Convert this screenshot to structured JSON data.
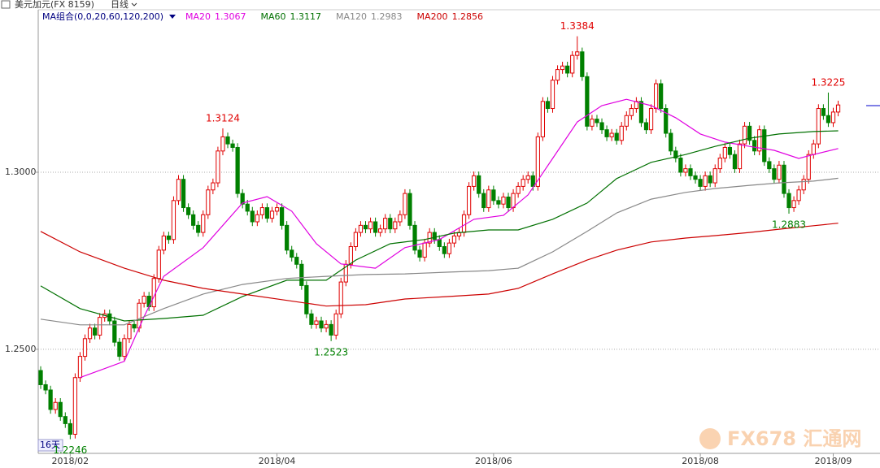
{
  "chart_data": {
    "type": "candlestick",
    "header": "美元加元(FX 8159)",
    "period": "日线",
    "ma_group": "MA组合(0,0,20,60,120,200)",
    "span_label": "16天",
    "watermark": "FX678 汇通网",
    "up_color": "#e00000",
    "down_color": "#008000",
    "grid": true,
    "xlim": [
      -0.5,
      170.5
    ],
    "ylim": [
      1.2206,
      1.3452
    ],
    "yticks": [
      {
        "value": 1.25,
        "label": "1.2500"
      },
      {
        "value": 1.3,
        "label": "1.3000"
      }
    ],
    "xticks": [
      {
        "value": 6,
        "label": "2018/02"
      },
      {
        "value": 48,
        "label": "2018/04"
      },
      {
        "value": 92,
        "label": "2018/06"
      },
      {
        "value": 134,
        "label": "2018/08"
      },
      {
        "value": 161,
        "label": "2018/09"
      }
    ],
    "open": [
      1.244,
      1.24,
      1.2385,
      1.233,
      1.235,
      1.231,
      1.229,
      1.226,
      1.242,
      1.248,
      1.253,
      1.256,
      1.254,
      1.259,
      1.26,
      1.258,
      1.252,
      1.248,
      1.253,
      1.257,
      1.256,
      1.263,
      1.265,
      1.262,
      1.27,
      1.278,
      1.282,
      1.281,
      1.292,
      1.298,
      1.29,
      1.288,
      1.285,
      1.283,
      1.288,
      1.295,
      1.297,
      1.306,
      1.31,
      1.308,
      1.307,
      1.294,
      1.291,
      1.289,
      1.286,
      1.288,
      1.29,
      1.287,
      1.289,
      1.29,
      1.285,
      1.278,
      1.276,
      1.274,
      1.268,
      1.26,
      1.257,
      1.258,
      1.256,
      1.257,
      1.254,
      1.26,
      1.269,
      1.274,
      1.279,
      1.283,
      1.285,
      1.284,
      1.286,
      1.283,
      1.284,
      1.287,
      1.284,
      1.286,
      1.288,
      1.294,
      1.285,
      1.278,
      1.276,
      1.28,
      1.283,
      1.281,
      1.279,
      1.277,
      1.28,
      1.282,
      1.283,
      1.288,
      1.296,
      1.299,
      1.294,
      1.29,
      1.295,
      1.292,
      1.291,
      1.293,
      1.29,
      1.294,
      1.296,
      1.298,
      1.299,
      1.296,
      1.31,
      1.32,
      1.318,
      1.326,
      1.329,
      1.33,
      1.328,
      1.333,
      1.334,
      1.327,
      1.313,
      1.315,
      1.314,
      1.312,
      1.31,
      1.311,
      1.309,
      1.313,
      1.316,
      1.318,
      1.32,
      1.314,
      1.312,
      1.318,
      1.325,
      1.318,
      1.311,
      1.306,
      1.304,
      1.3,
      1.301,
      1.299,
      1.298,
      1.296,
      1.299,
      1.297,
      1.301,
      1.304,
      1.307,
      1.305,
      1.301,
      1.308,
      1.313,
      1.309,
      1.306,
      1.312,
      1.303,
      1.301,
      1.298,
      1.302,
      1.294,
      1.29,
      1.292,
      1.295,
      1.298,
      1.305,
      1.308,
      1.318,
      1.316,
      1.314,
      1.317
    ],
    "high": [
      1.2452,
      1.2412,
      1.2397,
      1.2362,
      1.2362,
      1.2322,
      1.2302,
      1.2432,
      1.2492,
      1.2542,
      1.2572,
      1.2572,
      1.2602,
      1.2612,
      1.2612,
      1.2592,
      1.2532,
      1.2542,
      1.2582,
      1.2582,
      1.2642,
      1.2662,
      1.2662,
      1.2712,
      1.2792,
      1.2832,
      1.2832,
      1.2932,
      1.2992,
      1.2992,
      1.2912,
      1.2892,
      1.2862,
      1.2892,
      1.2962,
      1.2982,
      1.3072,
      1.3124,
      1.3112,
      1.3092,
      1.3082,
      1.2952,
      1.2922,
      1.2902,
      1.2892,
      1.2912,
      1.2912,
      1.2902,
      1.2912,
      1.2912,
      1.2862,
      1.2792,
      1.2772,
      1.2752,
      1.2692,
      1.2612,
      1.2592,
      1.2592,
      1.2582,
      1.2582,
      1.2612,
      1.2702,
      1.2752,
      1.2802,
      1.2842,
      1.2862,
      1.2862,
      1.2872,
      1.2872,
      1.2852,
      1.2882,
      1.2882,
      1.2872,
      1.2892,
      1.2952,
      1.2952,
      1.2862,
      1.2792,
      1.2812,
      1.2842,
      1.2842,
      1.2822,
      1.2802,
      1.2812,
      1.2832,
      1.2842,
      1.2892,
      1.2972,
      1.3002,
      1.3002,
      1.2952,
      1.2962,
      1.2962,
      1.2932,
      1.2942,
      1.2942,
      1.2952,
      1.2972,
      1.2992,
      1.3002,
      1.3002,
      1.3112,
      1.3212,
      1.3212,
      1.3272,
      1.3302,
      1.3312,
      1.3312,
      1.3342,
      1.3384,
      1.3352,
      1.3282,
      1.3162,
      1.3162,
      1.3152,
      1.3132,
      1.3122,
      1.3122,
      1.3142,
      1.3172,
      1.3192,
      1.3212,
      1.3212,
      1.3152,
      1.3192,
      1.3262,
      1.3262,
      1.3192,
      1.3122,
      1.3072,
      1.3052,
      1.3022,
      1.3022,
      1.3002,
      1.2992,
      1.3002,
      1.3002,
      1.3022,
      1.3052,
      1.3082,
      1.3082,
      1.3062,
      1.3092,
      1.3142,
      1.3142,
      1.3102,
      1.3132,
      1.3132,
      1.3042,
      1.3022,
      1.3032,
      1.3032,
      1.2952,
      1.2932,
      1.2962,
      1.2992,
      1.3062,
      1.3092,
      1.3192,
      1.3192,
      1.3225,
      1.3182,
      1.3202
    ],
    "low": [
      1.2388,
      1.2373,
      1.2318,
      1.2318,
      1.2298,
      1.2278,
      1.2246,
      1.2248,
      1.2408,
      1.2468,
      1.2518,
      1.2528,
      1.2528,
      1.2578,
      1.2568,
      1.2508,
      1.2468,
      1.2468,
      1.2518,
      1.2548,
      1.2548,
      1.2618,
      1.2608,
      1.2608,
      1.2688,
      1.2768,
      1.2798,
      1.2798,
      1.2908,
      1.2888,
      1.2868,
      1.2838,
      1.2818,
      1.2818,
      1.2868,
      1.2938,
      1.2958,
      1.3048,
      1.3068,
      1.3058,
      1.2928,
      1.2898,
      1.2878,
      1.2848,
      1.2848,
      1.2868,
      1.2858,
      1.2858,
      1.2878,
      1.2838,
      1.2768,
      1.2748,
      1.2728,
      1.2668,
      1.2588,
      1.2558,
      1.2558,
      1.2548,
      1.2548,
      1.2523,
      1.2528,
      1.2588,
      1.2678,
      1.2728,
      1.2778,
      1.2818,
      1.2828,
      1.2828,
      1.2818,
      1.2818,
      1.2828,
      1.2828,
      1.2828,
      1.2848,
      1.2868,
      1.2838,
      1.2768,
      1.2748,
      1.2748,
      1.2788,
      1.2798,
      1.2778,
      1.2758,
      1.2758,
      1.2788,
      1.2808,
      1.2818,
      1.2868,
      1.2948,
      1.2928,
      1.2888,
      1.2888,
      1.2908,
      1.2898,
      1.2898,
      1.2888,
      1.2888,
      1.2928,
      1.2948,
      1.2968,
      1.2948,
      1.2948,
      1.3088,
      1.3168,
      1.3168,
      1.3248,
      1.3278,
      1.3268,
      1.3268,
      1.3318,
      1.3258,
      1.3118,
      1.3118,
      1.3128,
      1.3108,
      1.3088,
      1.3088,
      1.3078,
      1.3078,
      1.3118,
      1.3148,
      1.3168,
      1.3128,
      1.3108,
      1.3108,
      1.3168,
      1.3168,
      1.3098,
      1.3048,
      1.3028,
      1.2988,
      1.2988,
      1.2978,
      1.2968,
      1.2948,
      1.2948,
      1.2958,
      1.2958,
      1.2998,
      1.3028,
      1.3038,
      1.2998,
      1.2998,
      1.3068,
      1.3078,
      1.3048,
      1.3048,
      1.3018,
      1.2998,
      1.2968,
      1.2968,
      1.2928,
      1.2883,
      1.2888,
      1.2908,
      1.2938,
      1.2968,
      1.3038,
      1.3068,
      1.3148,
      1.3128,
      1.3128,
      1.3158
    ],
    "close": [
      1.24,
      1.2385,
      1.233,
      1.235,
      1.231,
      1.229,
      1.226,
      1.242,
      1.248,
      1.253,
      1.256,
      1.254,
      1.259,
      1.26,
      1.258,
      1.252,
      1.248,
      1.253,
      1.257,
      1.256,
      1.263,
      1.265,
      1.262,
      1.27,
      1.278,
      1.282,
      1.281,
      1.292,
      1.298,
      1.29,
      1.288,
      1.285,
      1.283,
      1.288,
      1.295,
      1.297,
      1.306,
      1.31,
      1.308,
      1.307,
      1.294,
      1.291,
      1.289,
      1.286,
      1.288,
      1.29,
      1.287,
      1.289,
      1.29,
      1.285,
      1.278,
      1.276,
      1.274,
      1.268,
      1.26,
      1.257,
      1.258,
      1.256,
      1.257,
      1.254,
      1.26,
      1.269,
      1.274,
      1.279,
      1.283,
      1.285,
      1.284,
      1.286,
      1.283,
      1.284,
      1.287,
      1.284,
      1.286,
      1.288,
      1.294,
      1.285,
      1.278,
      1.276,
      1.28,
      1.283,
      1.281,
      1.279,
      1.277,
      1.28,
      1.282,
      1.283,
      1.288,
      1.296,
      1.299,
      1.294,
      1.29,
      1.295,
      1.292,
      1.291,
      1.293,
      1.29,
      1.294,
      1.296,
      1.298,
      1.299,
      1.296,
      1.31,
      1.32,
      1.318,
      1.326,
      1.329,
      1.33,
      1.328,
      1.333,
      1.334,
      1.327,
      1.313,
      1.315,
      1.314,
      1.312,
      1.31,
      1.311,
      1.309,
      1.313,
      1.316,
      1.318,
      1.32,
      1.314,
      1.312,
      1.318,
      1.325,
      1.318,
      1.311,
      1.306,
      1.304,
      1.3,
      1.301,
      1.299,
      1.298,
      1.296,
      1.299,
      1.297,
      1.301,
      1.304,
      1.307,
      1.305,
      1.301,
      1.308,
      1.313,
      1.309,
      1.306,
      1.312,
      1.303,
      1.301,
      1.298,
      1.302,
      1.294,
      1.29,
      1.292,
      1.295,
      1.298,
      1.305,
      1.308,
      1.318,
      1.316,
      1.314,
      1.317,
      1.319
    ],
    "annotations": [
      {
        "x": 6,
        "value": 1.2246,
        "color": "#008000"
      },
      {
        "x": 37,
        "value": 1.3124,
        "color": "#e00000"
      },
      {
        "x": 59,
        "value": 1.2523,
        "color": "#008000"
      },
      {
        "x": 109,
        "value": 1.3384,
        "color": "#e00000"
      },
      {
        "x": 152,
        "value": 1.2883,
        "color": "#008000"
      },
      {
        "x": 160,
        "value": 1.3225,
        "color": "#e00000"
      }
    ],
    "series": [
      {
        "name": "MA20",
        "color": "#e000e0",
        "last": 1.3067,
        "x": [
          8,
          17,
          21,
          25,
          33,
          41,
          46,
          51,
          56,
          61,
          68,
          74,
          81,
          88,
          94,
          99,
          104,
          109,
          114,
          119,
          124,
          129,
          134,
          139,
          144,
          149,
          154,
          157,
          162
        ],
        "values": [
          1.242,
          1.2466,
          1.2592,
          1.2706,
          1.2787,
          1.2913,
          1.2931,
          1.289,
          1.2798,
          1.2741,
          1.2729,
          1.2787,
          1.281,
          1.2867,
          1.2878,
          1.2936,
          1.3039,
          1.3142,
          1.3188,
          1.3206,
          1.3188,
          1.3154,
          1.3108,
          1.3085,
          1.3073,
          1.3062,
          1.3039,
          1.305,
          1.3067
        ]
      },
      {
        "name": "MA60",
        "color": "#007000",
        "last": 1.3117,
        "x": [
          0,
          8,
          17,
          25,
          33,
          41,
          50,
          58,
          64,
          71,
          78,
          84,
          91,
          97,
          104,
          111,
          117,
          124,
          131,
          137,
          144,
          150,
          157,
          162
        ],
        "values": [
          1.2679,
          1.2615,
          1.258,
          1.2587,
          1.2596,
          1.2649,
          1.2695,
          1.2695,
          1.2752,
          1.2798,
          1.281,
          1.2828,
          1.2837,
          1.2837,
          1.2867,
          1.2913,
          1.2982,
          1.3028,
          1.305,
          1.3073,
          1.3096,
          1.3108,
          1.3115,
          1.3117
        ]
      },
      {
        "name": "MA120",
        "color": "#888888",
        "last": 1.2983,
        "x": [
          0,
          8,
          17,
          25,
          33,
          41,
          50,
          58,
          66,
          74,
          83,
          91,
          97,
          104,
          111,
          117,
          124,
          131,
          137,
          144,
          150,
          157,
          162
        ],
        "values": [
          1.2585,
          1.2569,
          1.2569,
          1.2615,
          1.2656,
          1.2683,
          1.27,
          1.2706,
          1.2711,
          1.2713,
          1.2718,
          1.2722,
          1.2729,
          1.2775,
          1.2833,
          1.2885,
          1.2924,
          1.2943,
          1.2954,
          1.2963,
          1.297,
          1.2975,
          1.2983
        ]
      },
      {
        "name": "MA200",
        "color": "#cc0000",
        "last": 1.2856,
        "x": [
          0,
          8,
          17,
          25,
          33,
          41,
          50,
          58,
          66,
          74,
          83,
          91,
          97,
          104,
          111,
          117,
          124,
          131,
          137,
          144,
          150,
          157,
          162
        ],
        "values": [
          1.2833,
          1.2775,
          1.2729,
          1.2695,
          1.2672,
          1.2656,
          1.2638,
          1.2622,
          1.2626,
          1.2642,
          1.2649,
          1.2656,
          1.2672,
          1.2713,
          1.2752,
          1.278,
          1.2803,
          1.2814,
          1.2821,
          1.283,
          1.2839,
          1.2849,
          1.2856
        ]
      }
    ]
  }
}
